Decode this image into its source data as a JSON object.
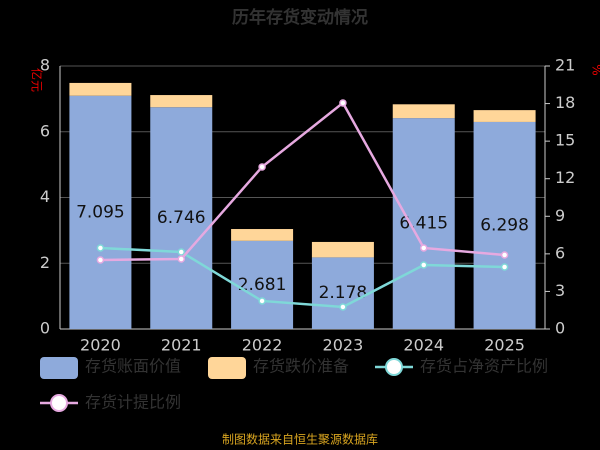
{
  "chart_data": {
    "type": "bar-line",
    "title": "历年存货变动情况",
    "y_label": "亿元",
    "y2_label": "%",
    "footer": "制图数据来自恒生聚源数据库",
    "categories": [
      "2020",
      "2021",
      "2022",
      "2023",
      "2024",
      "2025"
    ],
    "ylim": [
      0,
      8
    ],
    "yticks": [
      0,
      2,
      4,
      6,
      8
    ],
    "y2lim": [
      0,
      21
    ],
    "y2ticks": [
      0,
      3,
      6,
      9,
      12,
      15,
      18,
      21
    ],
    "series": [
      {
        "name": "存货账面价值",
        "kind": "bar",
        "color": "#8eaadb",
        "values": [
          7.095,
          6.746,
          2.681,
          2.178,
          6.415,
          6.298
        ],
        "show_labels": true
      },
      {
        "name": "存货跌价准备",
        "kind": "bar",
        "color": "#ffd699",
        "values": [
          0.39,
          0.37,
          0.36,
          0.47,
          0.42,
          0.36
        ]
      },
      {
        "name": "存货占净资产比例",
        "kind": "line",
        "axis": "y2",
        "color": "#7fd8d8",
        "values": [
          6.47,
          6.15,
          2.24,
          1.76,
          5.11,
          4.95
        ]
      },
      {
        "name": "存货计提比例",
        "kind": "line",
        "axis": "y2",
        "color": "#e6a9e0",
        "values": [
          5.51,
          5.59,
          12.94,
          18.05,
          6.47,
          5.91
        ]
      }
    ]
  }
}
